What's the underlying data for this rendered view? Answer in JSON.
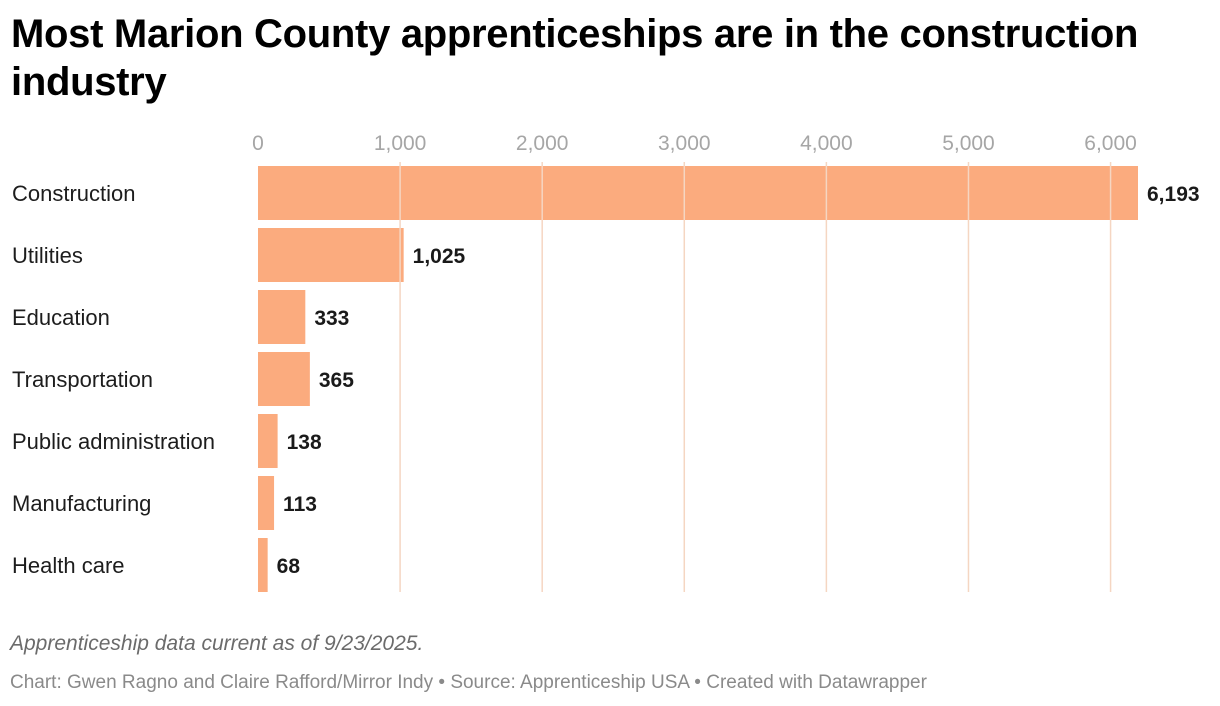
{
  "title": "Most Marion County apprenticeships are in the construction industry",
  "note": "Apprenticeship data current as of 9/23/2025.",
  "footer": "Chart: Gwen Ragno and Claire Rafford/Mirror Indy • Source: Apprenticeship USA • Created with Datawrapper",
  "chart_data": {
    "type": "bar",
    "orientation": "horizontal",
    "categories": [
      "Construction",
      "Utilities",
      "Education",
      "Transportation",
      "Public administration",
      "Manufacturing",
      "Health care"
    ],
    "values": [
      6193,
      1025,
      333,
      365,
      138,
      113,
      68
    ],
    "value_labels": [
      "6,193",
      "1,025",
      "333",
      "365",
      "138",
      "113",
      "68"
    ],
    "ticks": [
      0,
      1000,
      2000,
      3000,
      4000,
      5000,
      6000
    ],
    "tick_labels": [
      "0",
      "1,000",
      "2,000",
      "3,000",
      "4,000",
      "5,000",
      "6,000"
    ],
    "xlim": [
      0,
      6193
    ],
    "axis_position": "top",
    "grid": true,
    "legend": "none",
    "bar_color": "#fbab7e",
    "grid_color": "#f5d6c2"
  }
}
